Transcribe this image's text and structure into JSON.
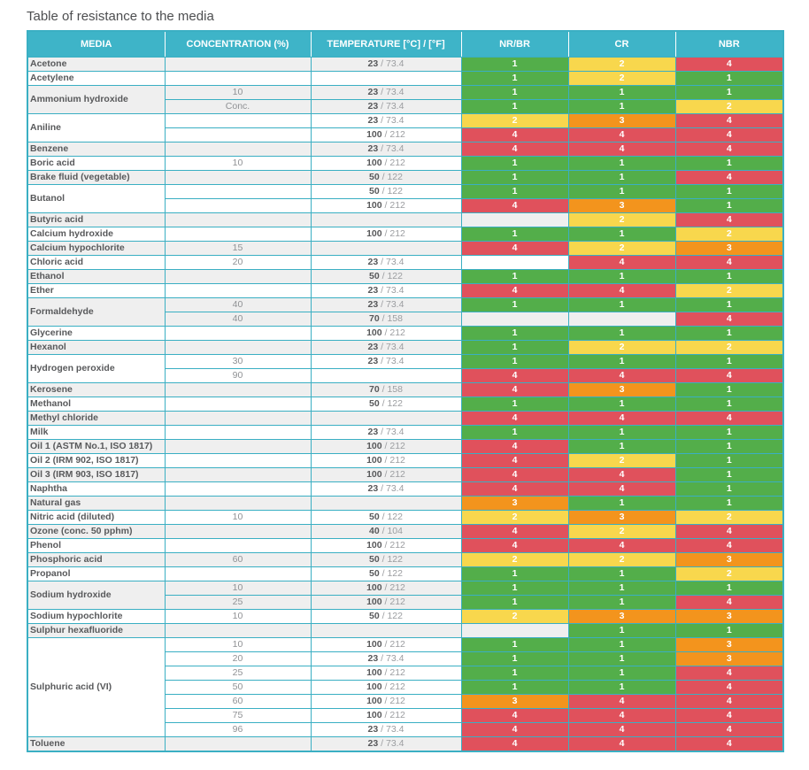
{
  "page_title": "Table of resistance to the media",
  "colors": {
    "header_bg": "#3eb4c8",
    "grid_border": "#3aafc3",
    "stripe_gray": "#efefef",
    "stripe_white": "#ffffff",
    "rating_1": "#53ae4a",
    "rating_2": "#f8d74d",
    "rating_3": "#f3941d",
    "rating_4": "#e0515c"
  },
  "table": {
    "columns": [
      "MEDIA",
      "CONCENTRATION (%)",
      "TEMPERATURE [°C] / [°F]",
      "NR/BR",
      "CR",
      "NBR"
    ],
    "groups": [
      {
        "media": "Acetone",
        "rows": [
          {
            "conc": "",
            "temp_c": "23",
            "temp_f": "73.4",
            "ratings": [
              1,
              2,
              4
            ]
          }
        ]
      },
      {
        "media": "Acetylene",
        "rows": [
          {
            "conc": "",
            "temp_c": "",
            "temp_f": "",
            "ratings": [
              1,
              2,
              1
            ]
          }
        ]
      },
      {
        "media": "Ammonium hydroxide",
        "rows": [
          {
            "conc": "10",
            "temp_c": "23",
            "temp_f": "73.4",
            "ratings": [
              1,
              1,
              1
            ]
          },
          {
            "conc": "Conc.",
            "temp_c": "23",
            "temp_f": "73.4",
            "ratings": [
              1,
              1,
              2
            ]
          }
        ]
      },
      {
        "media": "Aniline",
        "rows": [
          {
            "conc": "",
            "temp_c": "23",
            "temp_f": "73.4",
            "ratings": [
              2,
              3,
              4
            ]
          },
          {
            "conc": "",
            "temp_c": "100",
            "temp_f": "212",
            "ratings": [
              4,
              4,
              4
            ]
          }
        ]
      },
      {
        "media": "Benzene",
        "rows": [
          {
            "conc": "",
            "temp_c": "23",
            "temp_f": "73.4",
            "ratings": [
              4,
              4,
              4
            ]
          }
        ]
      },
      {
        "media": "Boric acid",
        "rows": [
          {
            "conc": "10",
            "temp_c": "100",
            "temp_f": "212",
            "ratings": [
              1,
              1,
              1
            ]
          }
        ]
      },
      {
        "media": "Brake fluid (vegetable)",
        "rows": [
          {
            "conc": "",
            "temp_c": "50",
            "temp_f": "122",
            "ratings": [
              1,
              1,
              4
            ]
          }
        ]
      },
      {
        "media": "Butanol",
        "rows": [
          {
            "conc": "",
            "temp_c": "50",
            "temp_f": "122",
            "ratings": [
              1,
              1,
              1
            ]
          },
          {
            "conc": "",
            "temp_c": "100",
            "temp_f": "212",
            "ratings": [
              4,
              3,
              1
            ]
          }
        ]
      },
      {
        "media": "Butyric acid",
        "rows": [
          {
            "conc": "",
            "temp_c": "",
            "temp_f": "",
            "ratings": [
              null,
              2,
              4
            ]
          }
        ]
      },
      {
        "media": "Calcium hydroxide",
        "rows": [
          {
            "conc": "",
            "temp_c": "100",
            "temp_f": "212",
            "ratings": [
              1,
              1,
              2
            ]
          }
        ]
      },
      {
        "media": "Calcium hypochlorite",
        "rows": [
          {
            "conc": "15",
            "temp_c": "",
            "temp_f": "",
            "ratings": [
              4,
              2,
              3
            ]
          }
        ]
      },
      {
        "media": "Chloric acid",
        "rows": [
          {
            "conc": "20",
            "temp_c": "23",
            "temp_f": "73.4",
            "ratings": [
              null,
              4,
              4
            ]
          }
        ]
      },
      {
        "media": "Ethanol",
        "rows": [
          {
            "conc": "",
            "temp_c": "50",
            "temp_f": "122",
            "ratings": [
              1,
              1,
              1
            ]
          }
        ]
      },
      {
        "media": "Ether",
        "rows": [
          {
            "conc": "",
            "temp_c": "23",
            "temp_f": "73.4",
            "ratings": [
              4,
              4,
              2
            ]
          }
        ]
      },
      {
        "media": "Formaldehyde",
        "rows": [
          {
            "conc": "40",
            "temp_c": "23",
            "temp_f": "73.4",
            "ratings": [
              1,
              1,
              1
            ]
          },
          {
            "conc": "40",
            "temp_c": "70",
            "temp_f": "158",
            "ratings": [
              null,
              null,
              4
            ]
          }
        ]
      },
      {
        "media": "Glycerine",
        "rows": [
          {
            "conc": "",
            "temp_c": "100",
            "temp_f": "212",
            "ratings": [
              1,
              1,
              1
            ]
          }
        ]
      },
      {
        "media": "Hexanol",
        "rows": [
          {
            "conc": "",
            "temp_c": "23",
            "temp_f": "73.4",
            "ratings": [
              1,
              2,
              2
            ]
          }
        ]
      },
      {
        "media": "Hydrogen peroxide",
        "rows": [
          {
            "conc": "30",
            "temp_c": "23",
            "temp_f": "73.4",
            "ratings": [
              1,
              1,
              1
            ]
          },
          {
            "conc": "90",
            "temp_c": "",
            "temp_f": "",
            "ratings": [
              4,
              4,
              4
            ]
          }
        ]
      },
      {
        "media": "Kerosene",
        "rows": [
          {
            "conc": "",
            "temp_c": "70",
            "temp_f": "158",
            "ratings": [
              4,
              3,
              1
            ]
          }
        ]
      },
      {
        "media": "Methanol",
        "rows": [
          {
            "conc": "",
            "temp_c": "50",
            "temp_f": "122",
            "ratings": [
              1,
              1,
              1
            ]
          }
        ]
      },
      {
        "media": "Methyl chloride",
        "rows": [
          {
            "conc": "",
            "temp_c": "",
            "temp_f": "",
            "ratings": [
              4,
              4,
              4
            ]
          }
        ]
      },
      {
        "media": "Milk",
        "rows": [
          {
            "conc": "",
            "temp_c": "23",
            "temp_f": "73.4",
            "ratings": [
              1,
              1,
              1
            ]
          }
        ]
      },
      {
        "media": "Oil 1 (ASTM No.1, ISO 1817)",
        "rows": [
          {
            "conc": "",
            "temp_c": "100",
            "temp_f": "212",
            "ratings": [
              4,
              1,
              1
            ]
          }
        ]
      },
      {
        "media": "Oil 2 (IRM 902, ISO 1817)",
        "rows": [
          {
            "conc": "",
            "temp_c": "100",
            "temp_f": "212",
            "ratings": [
              4,
              2,
              1
            ]
          }
        ]
      },
      {
        "media": "Oil 3 (IRM 903, ISO 1817)",
        "rows": [
          {
            "conc": "",
            "temp_c": "100",
            "temp_f": "212",
            "ratings": [
              4,
              4,
              1
            ]
          }
        ]
      },
      {
        "media": "Naphtha",
        "rows": [
          {
            "conc": "",
            "temp_c": "23",
            "temp_f": "73.4",
            "ratings": [
              4,
              4,
              1
            ]
          }
        ]
      },
      {
        "media": "Natural gas",
        "rows": [
          {
            "conc": "",
            "temp_c": "",
            "temp_f": "",
            "ratings": [
              3,
              1,
              1
            ]
          }
        ]
      },
      {
        "media": "Nitric acid (diluted)",
        "rows": [
          {
            "conc": "10",
            "temp_c": "50",
            "temp_f": "122",
            "ratings": [
              2,
              3,
              2
            ]
          }
        ]
      },
      {
        "media": "Ozone (conc. 50 pphm)",
        "rows": [
          {
            "conc": "",
            "temp_c": "40",
            "temp_f": "104",
            "ratings": [
              4,
              2,
              4
            ]
          }
        ]
      },
      {
        "media": "Phenol",
        "rows": [
          {
            "conc": "",
            "temp_c": "100",
            "temp_f": "212",
            "ratings": [
              4,
              4,
              4
            ]
          }
        ]
      },
      {
        "media": "Phosphoric acid",
        "rows": [
          {
            "conc": "60",
            "temp_c": "50",
            "temp_f": "122",
            "ratings": [
              2,
              2,
              3
            ]
          }
        ]
      },
      {
        "media": "Propanol",
        "rows": [
          {
            "conc": "",
            "temp_c": "50",
            "temp_f": "122",
            "ratings": [
              1,
              1,
              2
            ]
          }
        ]
      },
      {
        "media": "Sodium hydroxide",
        "rows": [
          {
            "conc": "10",
            "temp_c": "100",
            "temp_f": "212",
            "ratings": [
              1,
              1,
              1
            ]
          },
          {
            "conc": "25",
            "temp_c": "100",
            "temp_f": "212",
            "ratings": [
              1,
              1,
              4
            ]
          }
        ]
      },
      {
        "media": "Sodium hypochlorite",
        "rows": [
          {
            "conc": "10",
            "temp_c": "50",
            "temp_f": "122",
            "ratings": [
              2,
              3,
              3
            ]
          }
        ]
      },
      {
        "media": "Sulphur hexafluoride",
        "rows": [
          {
            "conc": "",
            "temp_c": "",
            "temp_f": "",
            "ratings": [
              null,
              1,
              1
            ]
          }
        ]
      },
      {
        "media": "Sulphuric acid (VI)",
        "rows": [
          {
            "conc": "10",
            "temp_c": "100",
            "temp_f": "212",
            "ratings": [
              1,
              1,
              3
            ]
          },
          {
            "conc": "20",
            "temp_c": "23",
            "temp_f": "73.4",
            "ratings": [
              1,
              1,
              3
            ]
          },
          {
            "conc": "25",
            "temp_c": "100",
            "temp_f": "212",
            "ratings": [
              1,
              1,
              4
            ]
          },
          {
            "conc": "50",
            "temp_c": "100",
            "temp_f": "212",
            "ratings": [
              1,
              1,
              4
            ]
          },
          {
            "conc": "60",
            "temp_c": "100",
            "temp_f": "212",
            "ratings": [
              3,
              4,
              4
            ]
          },
          {
            "conc": "75",
            "temp_c": "100",
            "temp_f": "212",
            "ratings": [
              4,
              4,
              4
            ]
          },
          {
            "conc": "96",
            "temp_c": "23",
            "temp_f": "73.4",
            "ratings": [
              4,
              4,
              4
            ]
          }
        ]
      },
      {
        "media": "Toluene",
        "rows": [
          {
            "conc": "",
            "temp_c": "23",
            "temp_f": "73.4",
            "ratings": [
              4,
              4,
              4
            ]
          }
        ]
      }
    ]
  }
}
